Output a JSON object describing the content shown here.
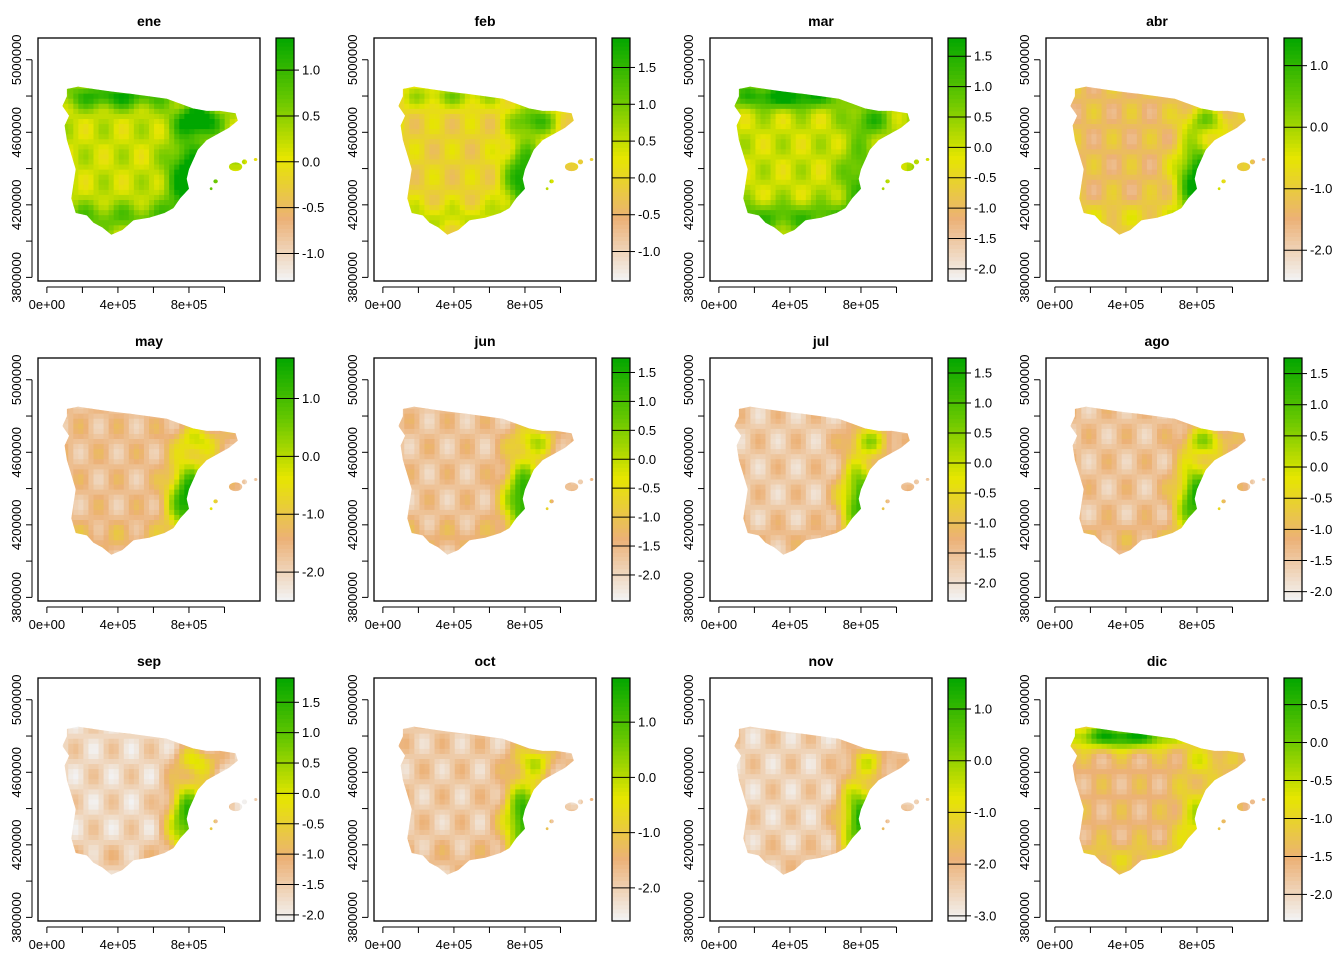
{
  "figure": {
    "x_tick_labels": [
      "0e+00",
      "4e+05",
      "8e+05"
    ],
    "y_tick_labels": [
      "3800000",
      "4200000",
      "4600000",
      "5000000"
    ]
  },
  "chart_data": [
    {
      "type": "heatmap",
      "title": "ene",
      "x_ticks": [
        0,
        400000,
        800000
      ],
      "y_ticks": [
        3800000,
        4200000,
        4600000,
        5000000
      ],
      "xlim": [
        -50000,
        1200000
      ],
      "ylim": [
        3780000,
        5120000
      ],
      "colorbar": {
        "range": [
          -1.3,
          1.35
        ],
        "ticks": [
          -1.0,
          -0.5,
          0.0,
          0.5,
          1.0
        ],
        "tick_labels": [
          "-1.0",
          "-0.5",
          "0.0",
          "0.5",
          "1.0"
        ]
      },
      "colors": [
        "#f2f2f2",
        "#ecb176",
        "#e6e600",
        "#63c600",
        "#00a600"
      ]
    },
    {
      "type": "heatmap",
      "title": "feb",
      "x_ticks": [
        0,
        400000,
        800000
      ],
      "y_ticks": [
        3800000,
        4200000,
        4600000,
        5000000
      ],
      "xlim": [
        -50000,
        1200000
      ],
      "ylim": [
        3780000,
        5120000
      ],
      "colorbar": {
        "range": [
          -1.4,
          1.9
        ],
        "ticks": [
          -1.0,
          -0.5,
          0.0,
          0.5,
          1.0,
          1.5
        ],
        "tick_labels": [
          "-1.0",
          "-0.5",
          "0.0",
          "0.5",
          "1.0",
          "1.5"
        ]
      },
      "colors": [
        "#f2f2f2",
        "#ecb176",
        "#e6e600",
        "#63c600",
        "#00a600"
      ]
    },
    {
      "type": "heatmap",
      "title": "mar",
      "x_ticks": [
        0,
        400000,
        800000
      ],
      "y_ticks": [
        3800000,
        4200000,
        4600000,
        5000000
      ],
      "xlim": [
        -50000,
        1200000
      ],
      "ylim": [
        3780000,
        5120000
      ],
      "colorbar": {
        "range": [
          -2.2,
          1.8
        ],
        "ticks": [
          -2.0,
          -1.5,
          -1.0,
          -0.5,
          0.0,
          0.5,
          1.0,
          1.5
        ],
        "tick_labels": [
          "-2.0",
          "-1.5",
          "-1.0",
          "-0.5",
          "0.0",
          "0.5",
          "1.0",
          "1.5"
        ]
      },
      "colors": [
        "#f2f2f2",
        "#ecb176",
        "#e6e600",
        "#63c600",
        "#00a600"
      ]
    },
    {
      "type": "heatmap",
      "title": "abr",
      "x_ticks": [
        0,
        400000,
        800000
      ],
      "y_ticks": [
        3800000,
        4200000,
        4600000,
        5000000
      ],
      "xlim": [
        -50000,
        1200000
      ],
      "ylim": [
        3780000,
        5120000
      ],
      "colorbar": {
        "range": [
          -2.5,
          1.45
        ],
        "ticks": [
          -2.0,
          -1.0,
          0.0,
          1.0
        ],
        "tick_labels": [
          "-2.0",
          "-1.0",
          "0.0",
          "1.0"
        ]
      },
      "colors": [
        "#f2f2f2",
        "#ecb176",
        "#e6e600",
        "#63c600",
        "#00a600"
      ]
    },
    {
      "type": "heatmap",
      "title": "may",
      "x_ticks": [
        0,
        400000,
        800000
      ],
      "y_ticks": [
        3800000,
        4200000,
        4600000,
        5000000
      ],
      "xlim": [
        -50000,
        1200000
      ],
      "ylim": [
        3780000,
        5120000
      ],
      "colorbar": {
        "range": [
          -2.5,
          1.7
        ],
        "ticks": [
          -2.0,
          -1.0,
          0.0,
          1.0
        ],
        "tick_labels": [
          "-2.0",
          "-1.0",
          "0.0",
          "1.0"
        ]
      },
      "colors": [
        "#f2f2f2",
        "#ecb176",
        "#e6e600",
        "#63c600",
        "#00a600"
      ]
    },
    {
      "type": "heatmap",
      "title": "jun",
      "x_ticks": [
        0,
        400000,
        800000
      ],
      "y_ticks": [
        3800000,
        4200000,
        4600000,
        5000000
      ],
      "xlim": [
        -50000,
        1200000
      ],
      "ylim": [
        3780000,
        5120000
      ],
      "colorbar": {
        "range": [
          -2.45,
          1.75
        ],
        "ticks": [
          -2.0,
          -1.5,
          -1.0,
          -0.5,
          0.0,
          0.5,
          1.0,
          1.5
        ],
        "tick_labels": [
          "-2.0",
          "-1.5",
          "-1.0",
          "-0.5",
          "0.0",
          "0.5",
          "1.0",
          "1.5"
        ]
      },
      "colors": [
        "#f2f2f2",
        "#ecb176",
        "#e6e600",
        "#63c600",
        "#00a600"
      ]
    },
    {
      "type": "heatmap",
      "title": "jul",
      "x_ticks": [
        0,
        400000,
        800000
      ],
      "y_ticks": [
        3800000,
        4200000,
        4600000,
        5000000
      ],
      "xlim": [
        -50000,
        1200000
      ],
      "ylim": [
        3780000,
        5120000
      ],
      "colorbar": {
        "range": [
          -2.3,
          1.75
        ],
        "ticks": [
          -2.0,
          -1.5,
          -1.0,
          -0.5,
          0.0,
          0.5,
          1.0,
          1.5
        ],
        "tick_labels": [
          "-2.0",
          "-1.5",
          "-1.0",
          "-0.5",
          "0.0",
          "0.5",
          "1.0",
          "1.5"
        ]
      },
      "colors": [
        "#f2f2f2",
        "#ecb176",
        "#e6e600",
        "#63c600",
        "#00a600"
      ]
    },
    {
      "type": "heatmap",
      "title": "ago",
      "x_ticks": [
        0,
        400000,
        800000
      ],
      "y_ticks": [
        3800000,
        4200000,
        4600000,
        5000000
      ],
      "xlim": [
        -50000,
        1200000
      ],
      "ylim": [
        3780000,
        5120000
      ],
      "colorbar": {
        "range": [
          -2.15,
          1.75
        ],
        "ticks": [
          -2.0,
          -1.5,
          -1.0,
          -0.5,
          0.0,
          0.5,
          1.0,
          1.5
        ],
        "tick_labels": [
          "-2.0",
          "-1.5",
          "-1.0",
          "-0.5",
          "0.0",
          "0.5",
          "1.0",
          "1.5"
        ]
      },
      "colors": [
        "#f2f2f2",
        "#ecb176",
        "#e6e600",
        "#63c600",
        "#00a600"
      ]
    },
    {
      "type": "heatmap",
      "title": "sep",
      "x_ticks": [
        0,
        400000,
        800000
      ],
      "y_ticks": [
        3800000,
        4200000,
        4600000,
        5000000
      ],
      "xlim": [
        -50000,
        1200000
      ],
      "ylim": [
        3780000,
        5120000
      ],
      "colorbar": {
        "range": [
          -2.1,
          1.9
        ],
        "ticks": [
          -2.0,
          -1.5,
          -1.0,
          -0.5,
          0.0,
          0.5,
          1.0,
          1.5
        ],
        "tick_labels": [
          "-2.0",
          "-1.5",
          "-1.0",
          "-0.5",
          "0.0",
          "0.5",
          "1.0",
          "1.5"
        ]
      },
      "colors": [
        "#f2f2f2",
        "#ecb176",
        "#e6e600",
        "#63c600",
        "#00a600"
      ]
    },
    {
      "type": "heatmap",
      "title": "oct",
      "x_ticks": [
        0,
        400000,
        800000
      ],
      "y_ticks": [
        3800000,
        4200000,
        4600000,
        5000000
      ],
      "xlim": [
        -50000,
        1200000
      ],
      "ylim": [
        3780000,
        5120000
      ],
      "colorbar": {
        "range": [
          -2.6,
          1.8
        ],
        "ticks": [
          -2.0,
          -1.0,
          0.0,
          1.0
        ],
        "tick_labels": [
          "-2.0",
          "-1.0",
          "0.0",
          "1.0"
        ]
      },
      "colors": [
        "#f2f2f2",
        "#ecb176",
        "#e6e600",
        "#63c600",
        "#00a600"
      ]
    },
    {
      "type": "heatmap",
      "title": "nov",
      "x_ticks": [
        0,
        400000,
        800000
      ],
      "y_ticks": [
        3800000,
        4200000,
        4600000,
        5000000
      ],
      "xlim": [
        -50000,
        1200000
      ],
      "ylim": [
        3780000,
        5120000
      ],
      "colorbar": {
        "range": [
          -3.1,
          1.6
        ],
        "ticks": [
          -3.0,
          -2.0,
          -1.0,
          0.0,
          1.0
        ],
        "tick_labels": [
          "-3.0",
          "-2.0",
          "-1.0",
          "0.0",
          "1.0"
        ]
      },
      "colors": [
        "#f2f2f2",
        "#ecb176",
        "#e6e600",
        "#63c600",
        "#00a600"
      ]
    },
    {
      "type": "heatmap",
      "title": "dic",
      "x_ticks": [
        0,
        400000,
        800000
      ],
      "y_ticks": [
        3800000,
        4200000,
        4600000,
        5000000
      ],
      "xlim": [
        -50000,
        1200000
      ],
      "ylim": [
        3780000,
        5120000
      ],
      "colorbar": {
        "range": [
          -2.35,
          0.85
        ],
        "ticks": [
          -2.0,
          -1.5,
          -1.0,
          -0.5,
          0.0,
          0.5
        ],
        "tick_labels": [
          "-2.0",
          "-1.5",
          "-1.0",
          "-0.5",
          "0.0",
          "0.5"
        ]
      },
      "colors": [
        "#f2f2f2",
        "#ecb176",
        "#e6e600",
        "#63c600",
        "#00a600"
      ]
    }
  ]
}
